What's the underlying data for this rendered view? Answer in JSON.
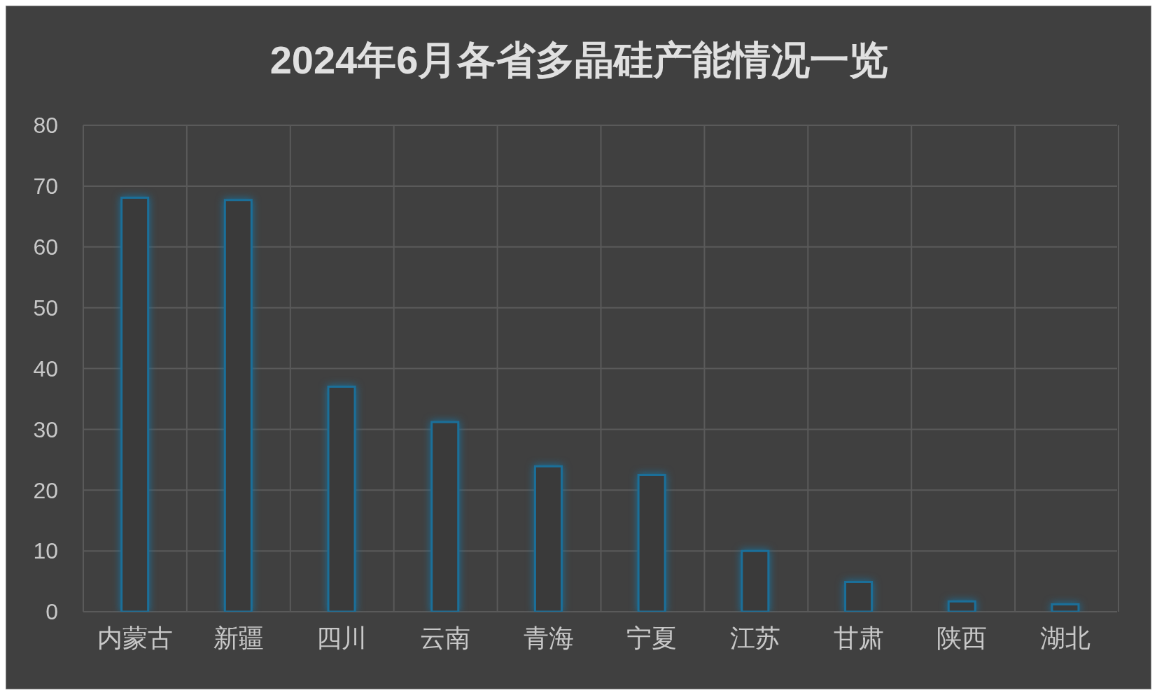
{
  "chart_data": {
    "type": "bar",
    "title": "2024年6月各省多晶硅产能情况一览",
    "categories": [
      "内蒙古",
      "新疆",
      "四川",
      "云南",
      "青海",
      "宁夏",
      "江苏",
      "甘肃",
      "陕西",
      "湖北"
    ],
    "values": [
      68.1,
      67.7,
      37,
      31.2,
      23.9,
      22.5,
      10,
      4.9,
      1.7,
      1.2
    ],
    "color": "#1b6f99",
    "ylim": [
      0,
      80
    ],
    "yticks": [
      0,
      10,
      20,
      30,
      40,
      50,
      60,
      70,
      80
    ],
    "grid": true
  }
}
